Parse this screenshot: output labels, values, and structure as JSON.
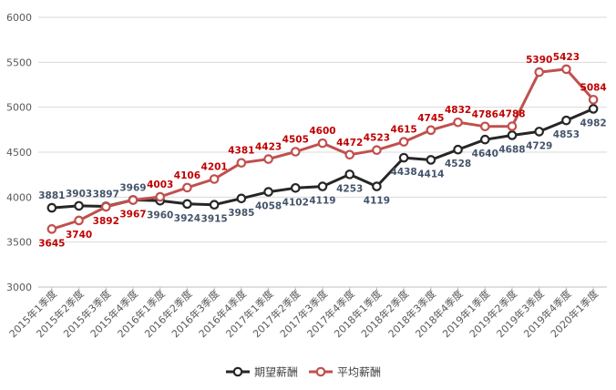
{
  "chart_data": {
    "type": "line",
    "title": "",
    "xlabel": "",
    "ylabel": "",
    "ylim": [
      3000,
      6000
    ],
    "yticks": [
      3000,
      3500,
      4000,
      4500,
      5000,
      5500,
      6000
    ],
    "grid": true,
    "legend_position": "bottom",
    "categories": [
      "2015年1季度",
      "2015年2季度",
      "2015年3季度",
      "2015年4季度",
      "2016年1季度",
      "2016年2季度",
      "2016年3季度",
      "2016年4季度",
      "2017年1季度",
      "2017年2季度",
      "2017年3季度",
      "2017年4季度",
      "2018年1季度",
      "2018年2季度",
      "2018年3季度",
      "2018年4季度",
      "2019年1季度",
      "2019年2季度",
      "2019年3季度",
      "2019年4季度",
      "2020年1季度"
    ],
    "series": [
      {
        "name": "期望薪酬",
        "color": "#262626",
        "label_color": "#44546a",
        "values": [
          3881,
          3903,
          3897,
          3969,
          3960,
          3924,
          3915,
          3985,
          4058,
          4102,
          4119,
          4253,
          4119,
          4438,
          4414,
          4528,
          4640,
          4688,
          4729,
          4853,
          4982
        ]
      },
      {
        "name": "平均薪酬",
        "color": "#c0504d",
        "label_color": "#c00000",
        "values": [
          3645,
          3740,
          3892,
          3967,
          4003,
          4106,
          4201,
          4381,
          4423,
          4505,
          4600,
          4472,
          4523,
          4615,
          4745,
          4832,
          4786,
          4788,
          5390,
          5423,
          5084
        ]
      }
    ]
  }
}
